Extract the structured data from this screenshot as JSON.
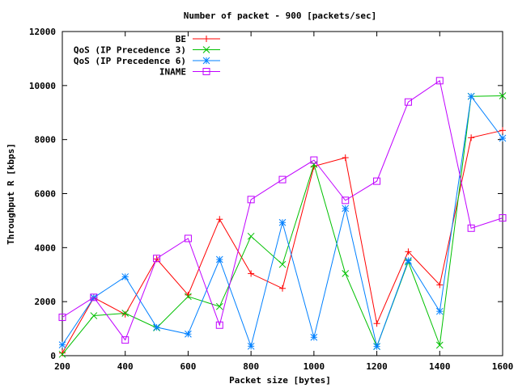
{
  "chart_data": {
    "type": "line",
    "title": "Number of packet - 900 [packets/sec]",
    "xlabel": "Packet size [bytes]",
    "ylabel": "Throughput R [kbps]",
    "xlim": [
      200,
      1600
    ],
    "ylim": [
      0,
      12000
    ],
    "xticks": [
      200,
      400,
      600,
      800,
      1000,
      1200,
      1400,
      1600
    ],
    "yticks": [
      0,
      2000,
      4000,
      6000,
      8000,
      10000,
      12000
    ],
    "grid": false,
    "legend_position": "top-right",
    "x": [
      200,
      300,
      400,
      500,
      600,
      700,
      800,
      900,
      1000,
      1100,
      1200,
      1300,
      1400,
      1500,
      1600
    ],
    "series": [
      {
        "name": "BE",
        "color": "#ff0000",
        "marker": "plus",
        "values": [
          100,
          2150,
          1530,
          3580,
          2250,
          5050,
          3040,
          2490,
          7010,
          7330,
          1190,
          3850,
          2620,
          8070,
          8340
        ]
      },
      {
        "name": "QoS (IP Precedence 3)",
        "color": "#00c000",
        "marker": "cross",
        "values": [
          50,
          1480,
          1570,
          1030,
          2190,
          1820,
          4420,
          3380,
          7080,
          3040,
          340,
          3470,
          390,
          9600,
          9620
        ]
      },
      {
        "name": "QoS (IP Precedence 6)",
        "color": "#0080ff",
        "marker": "star",
        "values": [
          400,
          2150,
          2920,
          1050,
          800,
          3560,
          350,
          4930,
          680,
          5450,
          340,
          3520,
          1640,
          9600,
          8050
        ]
      },
      {
        "name": "INAME",
        "color": "#c000ff",
        "marker": "box",
        "values": [
          1420,
          2160,
          580,
          3600,
          4340,
          1130,
          5780,
          6520,
          7240,
          5750,
          6460,
          9390,
          10180,
          4720,
          5100
        ]
      }
    ]
  }
}
